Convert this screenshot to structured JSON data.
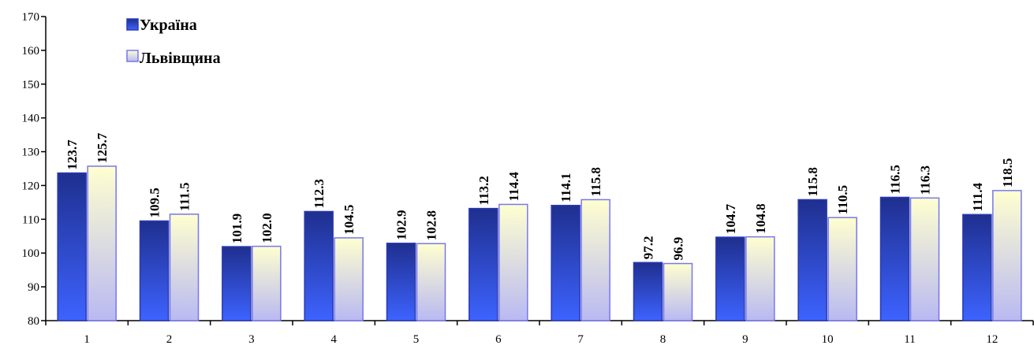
{
  "chart_data": {
    "type": "bar",
    "title": "",
    "xlabel": "",
    "ylabel": "",
    "ylim": [
      80,
      170
    ],
    "yticks": [
      80,
      90,
      100,
      110,
      120,
      130,
      140,
      150,
      160,
      170
    ],
    "categories": [
      "1",
      "2",
      "3",
      "4",
      "5",
      "6",
      "7",
      "8",
      "9",
      "10",
      "11",
      "12"
    ],
    "series": [
      {
        "name": "Україна",
        "values": [
          123.7,
          109.5,
          101.9,
          112.3,
          102.9,
          113.2,
          114.1,
          97.2,
          104.7,
          115.8,
          116.5,
          111.4
        ],
        "labels": [
          "123.7",
          "109.5",
          "101.9",
          "112.3",
          "102.9",
          "113.2",
          "114.1",
          "97.2",
          "104.7",
          "115.8",
          "116.5",
          "111.4"
        ],
        "color_top": "#1f2f8f",
        "color_bottom": "#3d63ff"
      },
      {
        "name": "Львівщина",
        "values": [
          125.7,
          111.5,
          102.0,
          104.5,
          102.8,
          114.4,
          115.8,
          96.9,
          104.8,
          110.5,
          116.3,
          118.5
        ],
        "labels": [
          "125.7",
          "111.5",
          "102.0",
          "104.5",
          "102.8",
          "114.4",
          "115.8",
          "96.9",
          "104.8",
          "110.5",
          "116.3",
          "118.5"
        ],
        "color_top": "#ffffd0",
        "color_bottom": "#b9b9f2"
      }
    ],
    "grid": false,
    "legend_position": "top-left"
  }
}
